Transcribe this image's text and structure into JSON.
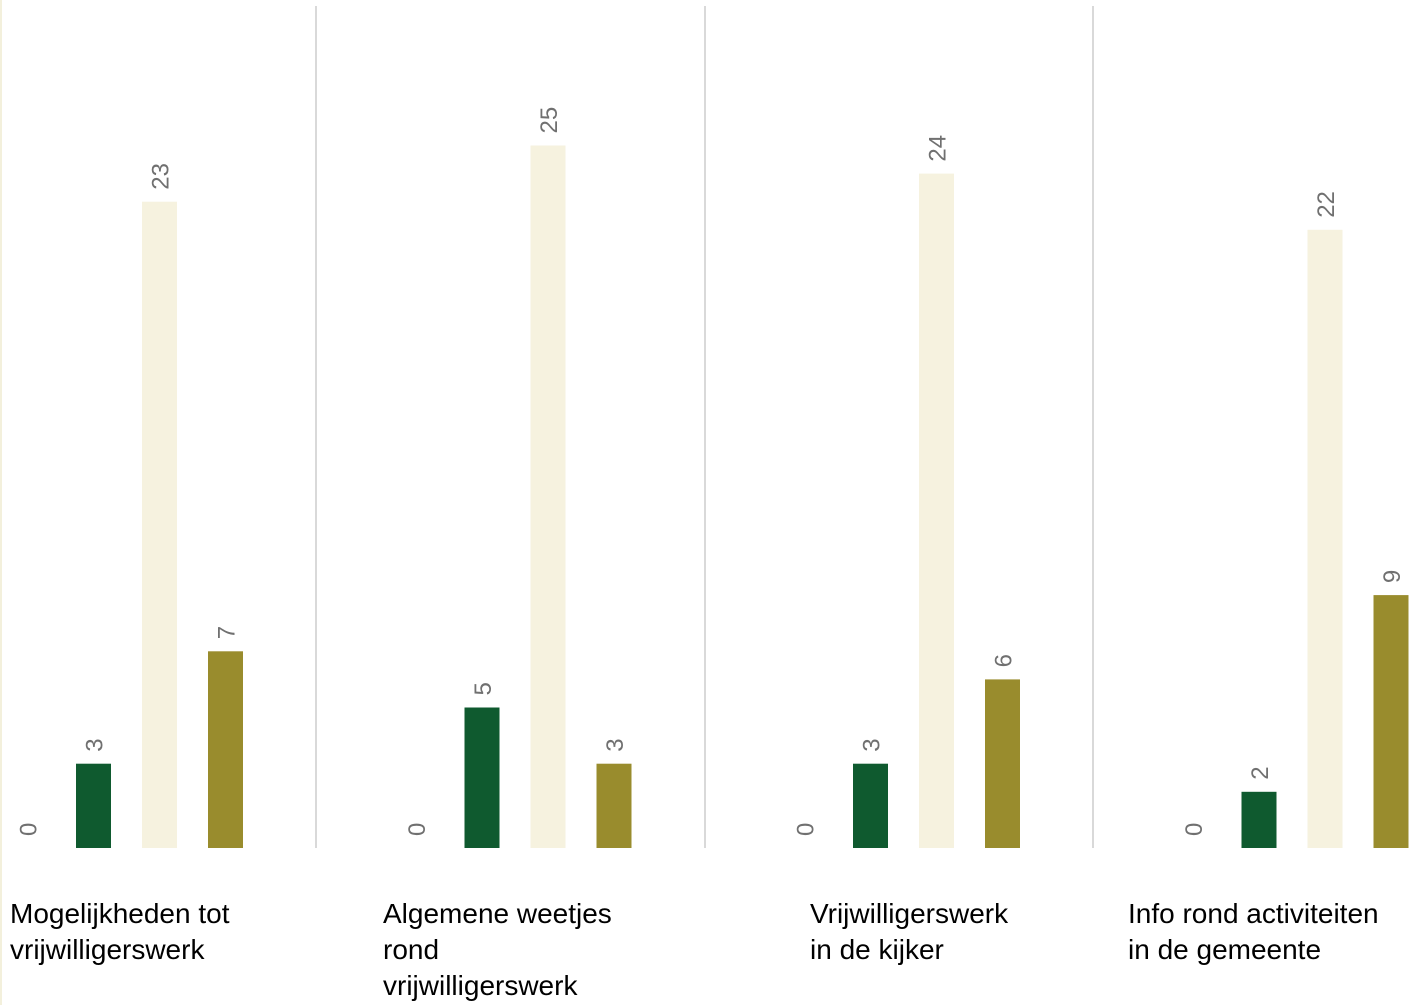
{
  "chart_data": {
    "type": "bar",
    "categories": [
      "Mogelijkheden tot vrijwilligerswerk",
      "Algemene weetjes rond vrijwilligerswerk",
      "Vrijwilligerswerk in de kijker",
      "Info rond activiteiten in de gemeente"
    ],
    "series": [
      {
        "values": [
          0,
          0,
          0,
          0
        ],
        "color": "#ffffff"
      },
      {
        "values": [
          3,
          5,
          3,
          2
        ],
        "color": "#0f5a2f"
      },
      {
        "values": [
          23,
          25,
          24,
          22
        ],
        "color": "#f6f2df"
      },
      {
        "values": [
          7,
          3,
          6,
          9
        ],
        "color": "#998c2d"
      }
    ],
    "data_labels": true,
    "label_color": "#707070",
    "grid": false,
    "divider_color": "#d9d9d9",
    "title": "",
    "xlabel": "",
    "ylabel": ""
  },
  "labels": [
    [
      "Mogelijkheden tot",
      "vrijwilligerswerk"
    ],
    [
      "Algemene weetjes",
      "rond",
      "vrijwilligerswerk"
    ],
    [
      "Vrijwilligerswerk",
      "in de kijker"
    ],
    [
      "Info rond activiteiten",
      "in de gemeente"
    ]
  ]
}
